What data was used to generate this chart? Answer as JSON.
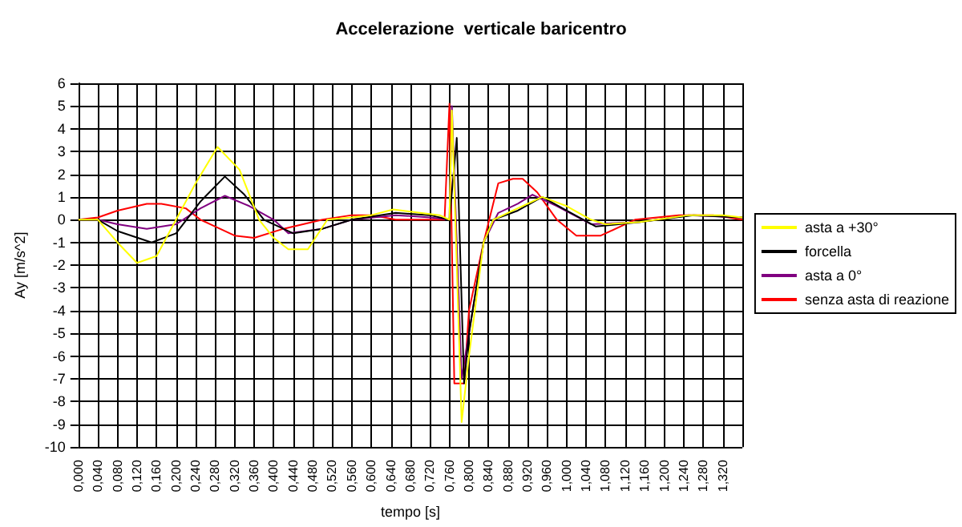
{
  "chart_data": {
    "type": "line",
    "title": "Accelerazione  verticale baricentro",
    "xlabel": "tempo [s]",
    "ylabel": "Ay [m/s^2]",
    "xlim": [
      0,
      1.36
    ],
    "xticks": [
      {
        "value": 0,
        "label": "0,000"
      },
      {
        "value": 0.04,
        "label": "0,040"
      },
      {
        "value": 0.08,
        "label": "0,080"
      },
      {
        "value": 0.12,
        "label": "0,120"
      },
      {
        "value": 0.16,
        "label": "0,160"
      },
      {
        "value": 0.2,
        "label": "0,200"
      },
      {
        "value": 0.24,
        "label": "0,240"
      },
      {
        "value": 0.28,
        "label": "0,280"
      },
      {
        "value": 0.32,
        "label": "0,320"
      },
      {
        "value": 0.36,
        "label": "0,360"
      },
      {
        "value": 0.4,
        "label": "0,400"
      },
      {
        "value": 0.44,
        "label": "0,440"
      },
      {
        "value": 0.48,
        "label": "0,480"
      },
      {
        "value": 0.52,
        "label": "0,520"
      },
      {
        "value": 0.56,
        "label": "0,560"
      },
      {
        "value": 0.6,
        "label": "0,600"
      },
      {
        "value": 0.64,
        "label": "0,640"
      },
      {
        "value": 0.68,
        "label": "0,680"
      },
      {
        "value": 0.72,
        "label": "0,720"
      },
      {
        "value": 0.76,
        "label": "0,760"
      },
      {
        "value": 0.8,
        "label": "0,800"
      },
      {
        "value": 0.84,
        "label": "0,840"
      },
      {
        "value": 0.88,
        "label": "0,880"
      },
      {
        "value": 0.92,
        "label": "0,920"
      },
      {
        "value": 0.96,
        "label": "0,960"
      },
      {
        "value": 1.0,
        "label": "1,000"
      },
      {
        "value": 1.04,
        "label": "1,040"
      },
      {
        "value": 1.08,
        "label": "1,080"
      },
      {
        "value": 1.12,
        "label": "1,120"
      },
      {
        "value": 1.16,
        "label": "1,160"
      },
      {
        "value": 1.2,
        "label": "1,200"
      },
      {
        "value": 1.24,
        "label": "1,240"
      },
      {
        "value": 1.28,
        "label": "1,280"
      },
      {
        "value": 1.32,
        "label": "1,320"
      },
      {
        "value": 1.36,
        "label": null
      }
    ],
    "ylim": [
      -10,
      6
    ],
    "yticks": [
      -10,
      -9,
      -8,
      -7,
      -6,
      -5,
      -4,
      -3,
      -2,
      -1,
      0,
      1,
      2,
      3,
      4,
      5,
      6
    ],
    "grid": true,
    "legend": "right",
    "marker": "none",
    "line_style": "solid",
    "series": [
      {
        "name": "asta a +30°",
        "color": "#ffff00",
        "x": [
          0,
          0.04,
          0.08,
          0.12,
          0.16,
          0.2,
          0.24,
          0.285,
          0.33,
          0.37,
          0.4,
          0.43,
          0.47,
          0.51,
          0.56,
          0.6,
          0.645,
          0.7,
          0.74,
          0.76,
          0.765,
          0.775,
          0.785,
          0.8,
          0.83,
          0.85,
          0.89,
          0.95,
          1.0,
          1.05,
          1.08,
          1.15,
          1.25,
          1.32,
          1.36
        ],
        "values": [
          0,
          0,
          -1.0,
          -1.9,
          -1.6,
          0,
          1.6,
          3.2,
          2.2,
          0,
          -0.8,
          -1.3,
          -1.3,
          0,
          0.1,
          0.2,
          0.45,
          0.3,
          0.2,
          0,
          4.8,
          -2,
          -8.9,
          -6,
          -1,
          0,
          0.4,
          1.0,
          0.6,
          0,
          -0.2,
          -0.1,
          0.2,
          0.2,
          0.1
        ]
      },
      {
        "name": "forcella",
        "color": "#000000",
        "x": [
          0,
          0.04,
          0.08,
          0.15,
          0.2,
          0.25,
          0.3,
          0.34,
          0.38,
          0.44,
          0.5,
          0.56,
          0.65,
          0.72,
          0.76,
          0.775,
          0.79,
          0.8,
          0.83,
          0.85,
          0.9,
          0.95,
          1.0,
          1.06,
          1.15,
          1.26,
          1.36
        ],
        "values": [
          0,
          0,
          -0.5,
          -1.0,
          -0.6,
          0.8,
          1.9,
          1.1,
          0,
          -0.6,
          -0.4,
          0,
          0.3,
          0.2,
          0,
          3.6,
          -7.2,
          -5,
          -1,
          0,
          0.4,
          1.0,
          0.4,
          -0.3,
          -0.1,
          0.2,
          0.1
        ]
      },
      {
        "name": "asta a 0°",
        "color": "#800080",
        "x": [
          0,
          0.04,
          0.08,
          0.14,
          0.2,
          0.25,
          0.3,
          0.35,
          0.4,
          0.43,
          0.5,
          0.56,
          0.65,
          0.72,
          0.76,
          0.765,
          0.785,
          0.8,
          0.83,
          0.86,
          0.9,
          0.93,
          0.98,
          1.05,
          1.15,
          1.25,
          1.36
        ],
        "values": [
          0,
          0,
          -0.2,
          -0.4,
          -0.2,
          0.5,
          1.05,
          0.6,
          0,
          -0.6,
          -0.4,
          0,
          0.2,
          0.1,
          0,
          5,
          -7,
          -5,
          -1,
          0.3,
          0.7,
          1.1,
          0.6,
          -0.2,
          -0.1,
          0.2,
          0.1
        ]
      },
      {
        "name": "senza asta di reazione",
        "color": "#ff0000",
        "x": [
          0,
          0.04,
          0.08,
          0.14,
          0.17,
          0.22,
          0.25,
          0.32,
          0.36,
          0.42,
          0.5,
          0.56,
          0.6,
          0.65,
          0.75,
          0.76,
          0.77,
          0.79,
          0.8,
          0.83,
          0.86,
          0.89,
          0.91,
          0.94,
          0.98,
          1.02,
          1.07,
          1.14,
          1.23,
          1.3,
          1.36
        ],
        "values": [
          0,
          0.1,
          0.4,
          0.7,
          0.7,
          0.5,
          0,
          -0.7,
          -0.8,
          -0.4,
          0,
          0.2,
          0.2,
          0,
          0,
          5.1,
          -7.2,
          -7.2,
          -4,
          -1,
          1.6,
          1.8,
          1.8,
          1.2,
          0,
          -0.7,
          -0.7,
          0,
          0.2,
          0.2,
          0
        ]
      }
    ]
  }
}
